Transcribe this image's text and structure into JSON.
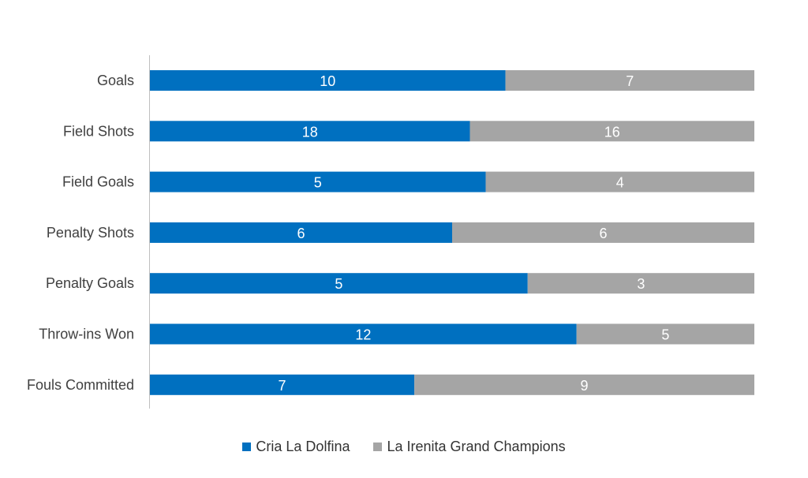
{
  "colors": {
    "series_a": "#0070C0",
    "series_b": "#A5A5A5",
    "axis": "#BFBFBF",
    "category_text": "#404040",
    "legend_text": "#333333"
  },
  "chart_data": {
    "type": "bar",
    "orientation": "horizontal",
    "stacking": "percent",
    "categories": [
      "Goals",
      "Field Shots",
      "Field Goals",
      "Penalty Shots",
      "Penalty Goals",
      "Throw-ins Won",
      "Fouls Committed"
    ],
    "series": [
      {
        "name": "Cria La Dolfina",
        "values": [
          10,
          18,
          5,
          6,
          5,
          12,
          7
        ]
      },
      {
        "name": "La Irenita Grand Champions",
        "values": [
          7,
          16,
          4,
          6,
          3,
          5,
          9
        ]
      }
    ],
    "title": "",
    "xlabel": "",
    "ylabel": "",
    "grid": false,
    "legend": "bottom"
  }
}
